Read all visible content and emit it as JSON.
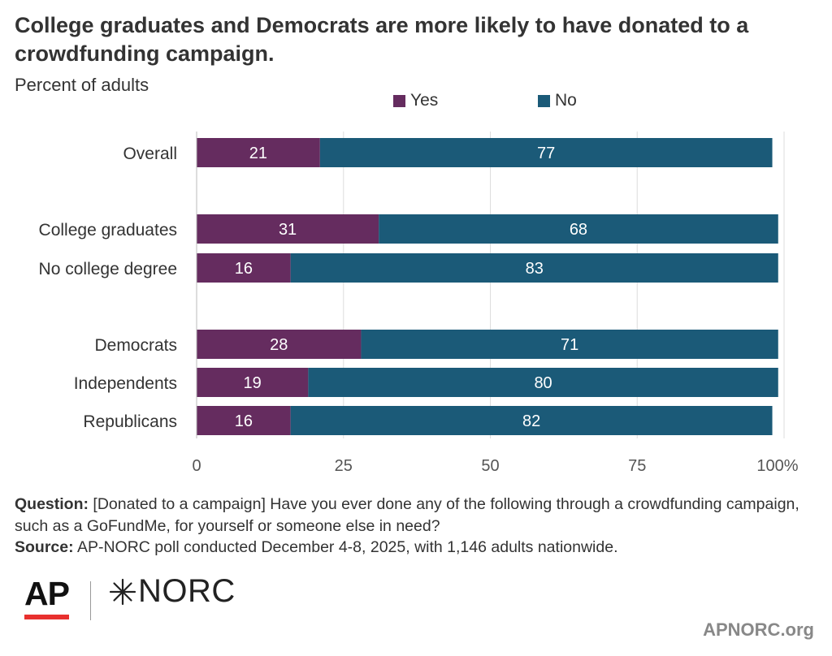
{
  "chart_data": {
    "type": "bar",
    "stacked": true,
    "orientation": "horizontal",
    "title": "College graduates and Democrats are more likely to have donated to a crowdfunding campaign.",
    "subtitle": "Percent of adults",
    "categories": [
      "Overall",
      "College graduates",
      "No college degree",
      "Democrats",
      "Independents",
      "Republicans"
    ],
    "groups": [
      [
        0
      ],
      [
        1,
        2
      ],
      [
        3,
        4,
        5
      ]
    ],
    "series": [
      {
        "name": "Yes",
        "color": "#652c5f",
        "values": [
          21,
          31,
          16,
          28,
          19,
          16
        ]
      },
      {
        "name": "No",
        "color": "#1b5a78",
        "values": [
          77,
          68,
          83,
          71,
          80,
          82
        ]
      }
    ],
    "xlim": [
      0,
      100
    ],
    "xticks": [
      "0",
      "25",
      "50",
      "75",
      "100%"
    ],
    "xtick_values": [
      0,
      25,
      50,
      75,
      100
    ],
    "grid": true,
    "legend": "top-center"
  },
  "footer": {
    "question_label": "Question:",
    "question_text": "[Donated to a campaign] Have you ever done any of the following through a crowdfunding campaign, such as a GoFundMe, for yourself or someone else in need?",
    "source_label": "Source:",
    "source_text": "AP-NORC poll conducted December 4-8, 2025, with 1,146 adults nationwide."
  },
  "logos": {
    "ap": "AP",
    "norc": "NORC"
  },
  "site": "APNORC.org"
}
